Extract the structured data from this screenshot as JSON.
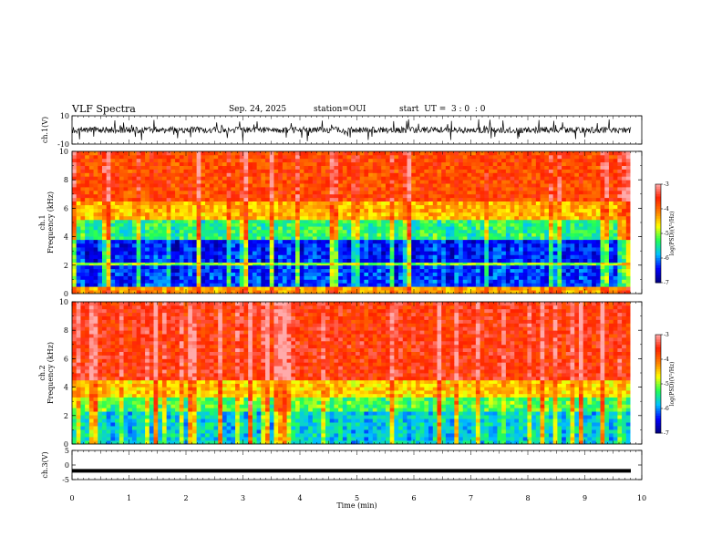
{
  "header": {
    "title": "VLF Spectra",
    "date": "Sep. 24, 2025",
    "station": "station=OUI",
    "start": "start  UT =  3 : 0  : 0"
  },
  "colors": {
    "spectrogram_scale": [
      "#00007f",
      "#0000ff",
      "#00c0ff",
      "#22ff55",
      "#ffff00",
      "#ff7f00",
      "#ff2200",
      "#ffaaaa"
    ],
    "waveform": "#000000"
  },
  "chart_data": [
    {
      "type": "line",
      "panel": "ch1-waveform",
      "ylabel": "ch.1(V)",
      "ylim": [
        -10,
        10
      ],
      "yticks": [
        "10",
        "-10"
      ],
      "xlim": [
        0,
        10
      ],
      "series": [
        {
          "description_level": 0,
          "values_range": [
            -4,
            4
          ]
        }
      ]
    },
    {
      "type": "heatmap",
      "panel": "ch1-spectrogram",
      "ylabel_top": "ch.1",
      "ylabel": "Frequency (kHz)",
      "ylim": [
        0,
        10
      ],
      "yticks": [
        "0",
        "2",
        "4",
        "6",
        "8",
        "10"
      ],
      "xlim": [
        0,
        9.8
      ],
      "colorbar": {
        "ticks": [
          "-3",
          "-4",
          "-5",
          "-6",
          "-7"
        ],
        "label": "log(PSD)(V²/Hz)",
        "range": [
          -7,
          -3
        ]
      },
      "bands_khz": [
        {
          "from": 0,
          "to": 0.5,
          "level": -4.3
        },
        {
          "from": 0.5,
          "to": 2.0,
          "level": -6.3
        },
        {
          "from": 2.0,
          "to": 2.2,
          "level": -5.0
        },
        {
          "from": 2.2,
          "to": 3.8,
          "level": -6.4
        },
        {
          "from": 3.8,
          "to": 5.2,
          "level": -5.4
        },
        {
          "from": 5.2,
          "to": 6.5,
          "level": -4.4
        },
        {
          "from": 6.5,
          "to": 10,
          "level": -3.8
        }
      ]
    },
    {
      "type": "heatmap",
      "panel": "ch2-spectrogram",
      "ylabel_top": "ch.2",
      "ylabel": "Frequency (kHz)",
      "ylim": [
        0,
        10
      ],
      "yticks": [
        "0",
        "2",
        "4",
        "6",
        "8",
        "10"
      ],
      "xlim": [
        0,
        9.8
      ],
      "colorbar": {
        "ticks": [
          "-3",
          "-4",
          "-5",
          "-6",
          "-7"
        ],
        "label": "log(PSD)(V²/Hz)",
        "range": [
          -7,
          -3
        ]
      },
      "bands_khz": [
        {
          "from": 0,
          "to": 2.3,
          "level": -5.7
        },
        {
          "from": 2.3,
          "to": 3.3,
          "level": -5.2
        },
        {
          "from": 3.3,
          "to": 4.5,
          "level": -4.5
        },
        {
          "from": 4.5,
          "to": 10,
          "level": -3.6
        }
      ]
    },
    {
      "type": "line",
      "panel": "ch3-waveform",
      "ylabel": "ch.3(V)",
      "ylim": [
        -5,
        5
      ],
      "yticks": [
        "5",
        "0",
        "-5"
      ],
      "xlim": [
        0,
        10
      ],
      "series": [
        {
          "constant_value": -2
        }
      ]
    }
  ],
  "xaxis": {
    "label": "Time (min)",
    "ticks": [
      "0",
      "1",
      "2",
      "3",
      "4",
      "5",
      "6",
      "7",
      "8",
      "9",
      "10"
    ],
    "range": [
      0,
      10
    ]
  }
}
